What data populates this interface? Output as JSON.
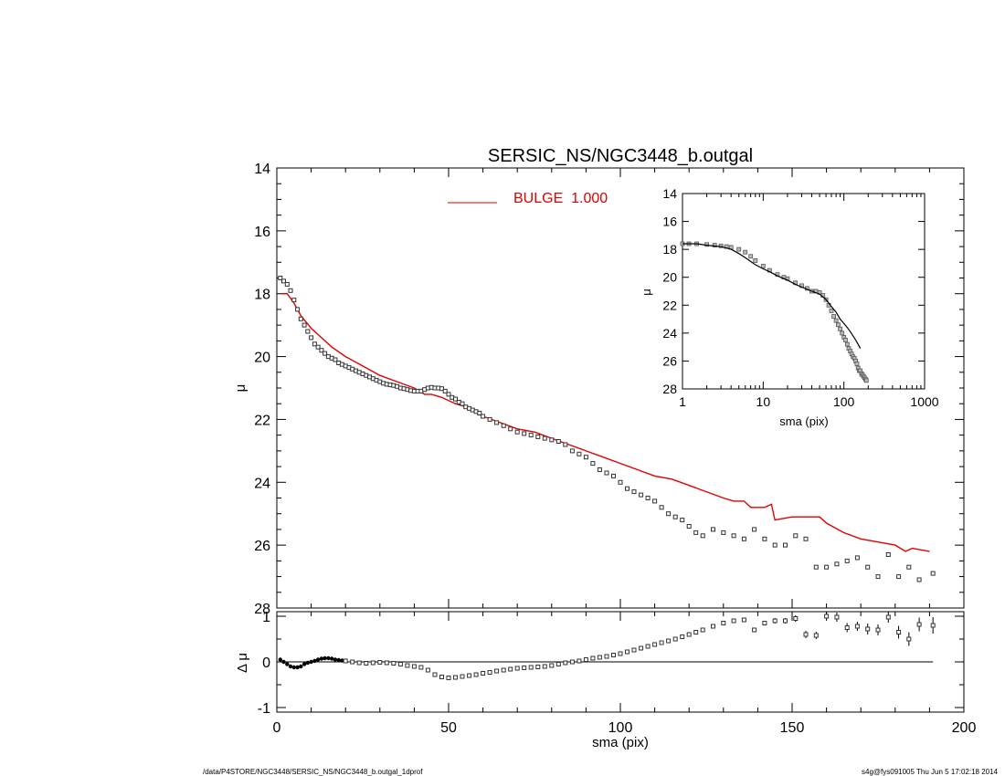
{
  "footer": {
    "left": "/data/P4STORE/NGC3448/SERSIC_NS/NGC3448_b.outgal_1dprof",
    "right": "s4g@fys091005  Thu Jun  5 17:02:18 2014"
  },
  "colors": {
    "model": "#e00000",
    "data": "#333333",
    "axis": "#000000"
  },
  "chart_data": [
    {
      "id": "main",
      "type": "scatter",
      "title": "SERSIC_NS/NGC3448_b.outgal",
      "xlabel": "",
      "ylabel": "μ",
      "xlim": [
        0,
        200
      ],
      "ylim": [
        28,
        14
      ],
      "y_inverted": true,
      "y_ticks": [
        14,
        16,
        18,
        20,
        22,
        24,
        26,
        28
      ],
      "x_ticks": [
        0,
        50,
        100,
        150,
        200
      ],
      "x_tick_labels_shown": false,
      "legend": {
        "label": "BULGE  1.000",
        "placement": "top-center"
      },
      "series": [
        {
          "name": "BULGE  1.000",
          "kind": "line",
          "x": [
            1,
            3,
            5,
            7,
            10,
            13,
            16,
            20,
            25,
            30,
            35,
            40,
            43,
            45,
            48,
            52,
            55,
            60,
            65,
            70,
            75,
            80,
            85,
            90,
            95,
            100,
            105,
            110,
            115,
            120,
            125,
            130,
            133,
            136,
            138,
            142,
            144,
            145,
            150,
            155,
            158,
            160,
            165,
            170,
            175,
            180,
            183,
            185,
            190
          ],
          "y": [
            18.0,
            18.0,
            18.3,
            18.7,
            19.1,
            19.4,
            19.7,
            20.0,
            20.3,
            20.6,
            20.8,
            21.0,
            21.2,
            21.2,
            21.3,
            21.5,
            21.6,
            21.9,
            22.1,
            22.3,
            22.4,
            22.6,
            22.8,
            23.0,
            23.2,
            23.4,
            23.6,
            23.8,
            23.9,
            24.1,
            24.3,
            24.5,
            24.6,
            24.6,
            24.8,
            24.8,
            24.7,
            25.2,
            25.1,
            25.1,
            25.1,
            25.3,
            25.6,
            25.8,
            25.9,
            26.0,
            26.2,
            26.1,
            26.2
          ]
        },
        {
          "name": "",
          "kind": "points",
          "x": [
            1,
            2,
            3,
            4,
            5,
            6,
            7,
            8,
            9,
            10,
            11,
            12,
            13,
            14,
            15,
            16,
            17,
            18,
            19,
            20,
            21,
            22,
            23,
            24,
            25,
            26,
            27,
            28,
            29,
            30,
            31,
            32,
            33,
            34,
            35,
            36,
            37,
            38,
            39,
            40,
            41,
            42,
            43,
            44,
            45,
            46,
            47,
            48,
            49,
            50,
            51,
            52,
            53,
            54,
            55,
            56,
            57,
            58,
            59,
            60,
            62,
            64,
            66,
            68,
            70,
            72,
            74,
            76,
            78,
            80,
            82,
            84,
            86,
            88,
            90,
            92,
            94,
            96,
            98,
            100,
            102,
            104,
            106,
            108,
            110,
            112,
            114,
            116,
            118,
            120,
            122,
            124,
            127,
            130,
            133,
            136,
            139,
            142,
            145,
            148,
            151,
            154,
            157,
            160,
            163,
            166,
            169,
            172,
            175,
            178,
            181,
            184,
            187,
            191
          ],
          "y": [
            17.5,
            17.6,
            17.7,
            17.9,
            18.2,
            18.5,
            18.8,
            19.0,
            19.2,
            19.4,
            19.6,
            19.7,
            19.8,
            19.9,
            20.0,
            20.05,
            20.1,
            20.2,
            20.25,
            20.3,
            20.35,
            20.4,
            20.45,
            20.5,
            20.55,
            20.6,
            20.65,
            20.7,
            20.75,
            20.8,
            20.85,
            20.88,
            20.9,
            20.92,
            20.95,
            21.0,
            21.02,
            21.05,
            21.08,
            21.1,
            21.1,
            21.1,
            21.05,
            21.0,
            20.98,
            21.0,
            21.0,
            21.02,
            21.1,
            21.2,
            21.3,
            21.35,
            21.45,
            21.5,
            21.6,
            21.65,
            21.7,
            21.75,
            21.8,
            21.9,
            22.0,
            22.1,
            22.2,
            22.3,
            22.4,
            22.45,
            22.5,
            22.55,
            22.6,
            22.65,
            22.7,
            22.8,
            23.0,
            23.1,
            23.2,
            23.4,
            23.6,
            23.7,
            23.8,
            24.0,
            24.2,
            24.3,
            24.4,
            24.5,
            24.6,
            24.8,
            25.0,
            25.1,
            25.2,
            25.4,
            25.6,
            25.7,
            25.5,
            25.6,
            25.7,
            25.8,
            25.5,
            25.8,
            26.0,
            26.0,
            25.7,
            25.8,
            26.7,
            26.7,
            26.6,
            26.5,
            26.4,
            26.7,
            27.0,
            26.3,
            27.0,
            26.7,
            27.1,
            26.9
          ]
        }
      ]
    },
    {
      "id": "inset",
      "type": "scatter",
      "title": "",
      "xlabel": "sma (pix)",
      "ylabel": "μ",
      "x_scale": "log",
      "xlim": [
        1,
        1000
      ],
      "ylim": [
        28,
        14
      ],
      "y_inverted": true,
      "x_ticks": [
        1,
        10,
        100,
        1000
      ],
      "x_tick_labels": [
        "1",
        "10",
        "100",
        "1000"
      ],
      "y_ticks": [
        14,
        16,
        18,
        20,
        22,
        24,
        26,
        28
      ],
      "series": [
        {
          "name": "",
          "kind": "line",
          "x": [
            1,
            1.5,
            2,
            3,
            4,
            5,
            6,
            8,
            10,
            12,
            15,
            20,
            25,
            30,
            40,
            50,
            60,
            70,
            80,
            90,
            100,
            110,
            120,
            130,
            140,
            150,
            160
          ],
          "y": [
            17.6,
            17.6,
            17.7,
            17.8,
            18.0,
            18.3,
            18.6,
            19.1,
            19.4,
            19.6,
            19.9,
            20.2,
            20.5,
            20.7,
            21.0,
            21.2,
            21.6,
            22.1,
            22.5,
            23.0,
            23.3,
            23.6,
            23.9,
            24.2,
            24.5,
            24.8,
            25.1
          ]
        },
        {
          "name": "",
          "kind": "points",
          "x": [
            1,
            1.2,
            1.5,
            2,
            2.5,
            3,
            3.5,
            4,
            5,
            6,
            7,
            8,
            10,
            12,
            15,
            18,
            20,
            25,
            30,
            35,
            40,
            45,
            50,
            55,
            60,
            65,
            70,
            75,
            80,
            85,
            90,
            95,
            100,
            105,
            110,
            115,
            120,
            125,
            130,
            135,
            140,
            145,
            150,
            155,
            160,
            165,
            170,
            175,
            180,
            185,
            190
          ],
          "y": [
            17.6,
            17.6,
            17.6,
            17.65,
            17.7,
            17.75,
            17.8,
            17.85,
            18.0,
            18.2,
            18.5,
            18.8,
            19.2,
            19.5,
            19.8,
            20.0,
            20.1,
            20.4,
            20.6,
            20.8,
            21.0,
            21.0,
            21.1,
            21.3,
            21.6,
            22.0,
            22.4,
            22.8,
            23.1,
            23.4,
            23.7,
            24.0,
            24.3,
            24.5,
            24.8,
            25.1,
            25.3,
            25.5,
            25.7,
            25.8,
            26.0,
            26.2,
            26.5,
            26.7,
            26.7,
            26.9,
            27.0,
            27.1,
            27.2,
            27.3,
            27.4
          ]
        }
      ]
    },
    {
      "id": "residual",
      "type": "scatter",
      "title": "",
      "xlabel": "sma (pix)",
      "ylabel": "Δ μ",
      "xlim": [
        0,
        200
      ],
      "ylim": [
        -1.1,
        1.1
      ],
      "x_ticks": [
        0,
        50,
        100,
        150,
        200
      ],
      "x_tick_labels": [
        "0",
        "50",
        "100",
        "150",
        "200"
      ],
      "y_ticks": [
        -1,
        0,
        1
      ],
      "y_tick_labels": [
        "-1",
        "0",
        "1"
      ],
      "zero_line": true,
      "series": [
        {
          "name": "",
          "kind": "points_errorbars",
          "x": [
            1,
            2,
            3,
            4,
            5,
            6,
            7,
            8,
            9,
            10,
            11,
            12,
            13,
            14,
            15,
            16,
            17,
            18,
            19,
            20,
            22,
            24,
            26,
            28,
            30,
            32,
            34,
            36,
            38,
            40,
            42,
            44,
            46,
            48,
            50,
            52,
            54,
            56,
            58,
            60,
            62,
            64,
            66,
            68,
            70,
            72,
            74,
            76,
            78,
            80,
            82,
            84,
            86,
            88,
            90,
            92,
            94,
            96,
            98,
            100,
            102,
            104,
            106,
            108,
            110,
            112,
            114,
            116,
            118,
            120,
            122,
            124,
            127,
            130,
            133,
            136,
            139,
            142,
            145,
            148,
            151,
            154,
            157,
            160,
            163,
            166,
            169,
            172,
            175,
            178,
            181,
            184,
            187,
            191
          ],
          "y": [
            0.05,
            0.0,
            -0.05,
            -0.1,
            -0.12,
            -0.12,
            -0.1,
            -0.05,
            -0.02,
            0.0,
            0.02,
            0.05,
            0.07,
            0.08,
            0.08,
            0.07,
            0.05,
            0.04,
            0.03,
            0.02,
            0.0,
            -0.02,
            -0.03,
            -0.02,
            -0.01,
            -0.02,
            -0.03,
            -0.05,
            -0.08,
            -0.1,
            -0.12,
            -0.18,
            -0.28,
            -0.33,
            -0.35,
            -0.34,
            -0.32,
            -0.3,
            -0.28,
            -0.25,
            -0.23,
            -0.2,
            -0.18,
            -0.16,
            -0.14,
            -0.13,
            -0.12,
            -0.11,
            -0.1,
            -0.08,
            -0.05,
            -0.02,
            0.0,
            0.02,
            0.05,
            0.08,
            0.1,
            0.12,
            0.15,
            0.18,
            0.22,
            0.26,
            0.3,
            0.34,
            0.38,
            0.42,
            0.46,
            0.5,
            0.55,
            0.6,
            0.65,
            0.7,
            0.78,
            0.85,
            0.9,
            0.92,
            0.7,
            0.85,
            0.9,
            0.9,
            0.95,
            0.6,
            0.58,
            1.0,
            0.98,
            0.75,
            0.78,
            0.72,
            0.7,
            0.98,
            0.65,
            0.5,
            0.82,
            0.8
          ],
          "err": [
            0,
            0,
            0,
            0,
            0,
            0,
            0,
            0,
            0,
            0,
            0,
            0,
            0,
            0,
            0,
            0,
            0,
            0,
            0,
            0,
            0,
            0,
            0,
            0,
            0,
            0,
            0,
            0,
            0,
            0,
            0,
            0,
            0,
            0,
            0,
            0,
            0,
            0,
            0,
            0,
            0,
            0,
            0,
            0,
            0,
            0,
            0,
            0,
            0,
            0,
            0,
            0,
            0,
            0,
            0,
            0,
            0,
            0,
            0,
            0,
            0,
            0,
            0,
            0,
            0,
            0,
            0,
            0,
            0,
            0,
            0,
            0,
            0,
            0,
            0,
            0,
            0.05,
            0.05,
            0.06,
            0.06,
            0.07,
            0.08,
            0.08,
            0.1,
            0.1,
            0.1,
            0.1,
            0.12,
            0.12,
            0.12,
            0.14,
            0.15,
            0.15,
            0.18
          ]
        }
      ]
    }
  ]
}
